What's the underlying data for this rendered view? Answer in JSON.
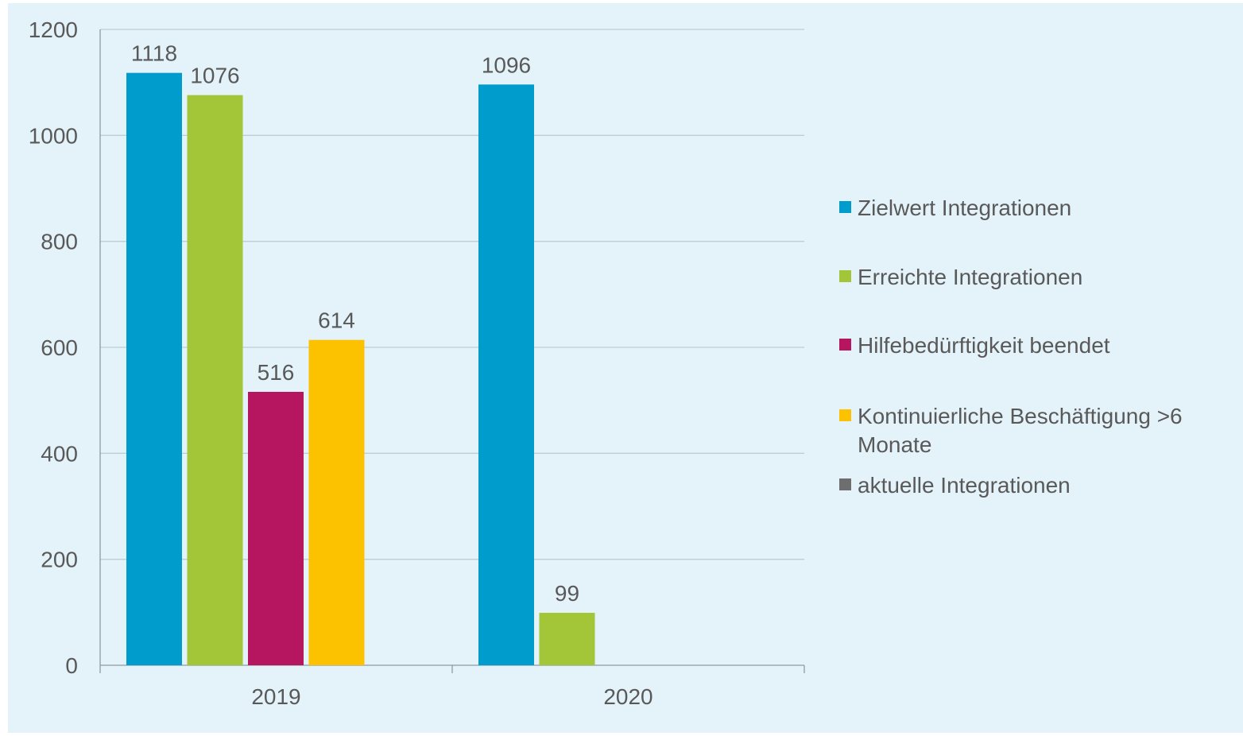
{
  "chart_data": {
    "type": "bar",
    "categories": [
      "2019",
      "2020"
    ],
    "series": [
      {
        "name": "Zielwert Integrationen",
        "color": "#009ccc",
        "values": [
          1118,
          1096
        ]
      },
      {
        "name": "Erreichte Integrationen",
        "color": "#a3c639",
        "values": [
          1076,
          99
        ]
      },
      {
        "name": "Hilfebedürftigkeit beendet",
        "color": "#b5165f",
        "values": [
          516,
          null
        ]
      },
      {
        "name": "Kontinuierliche Beschäftigung >6 Monate",
        "color": "#fcc200",
        "values": [
          614,
          null
        ]
      },
      {
        "name": "aktuelle Integrationen",
        "color": "#6e6e6e",
        "values": [
          null,
          null
        ]
      }
    ],
    "ylim": [
      0,
      1200
    ],
    "yticks": [
      0,
      200,
      400,
      600,
      800,
      1000,
      1200
    ],
    "grid": true,
    "legend_position": "right",
    "background": "#e4f3f9",
    "gridline_color": "#b8cfd6",
    "text_color": "#595959"
  }
}
